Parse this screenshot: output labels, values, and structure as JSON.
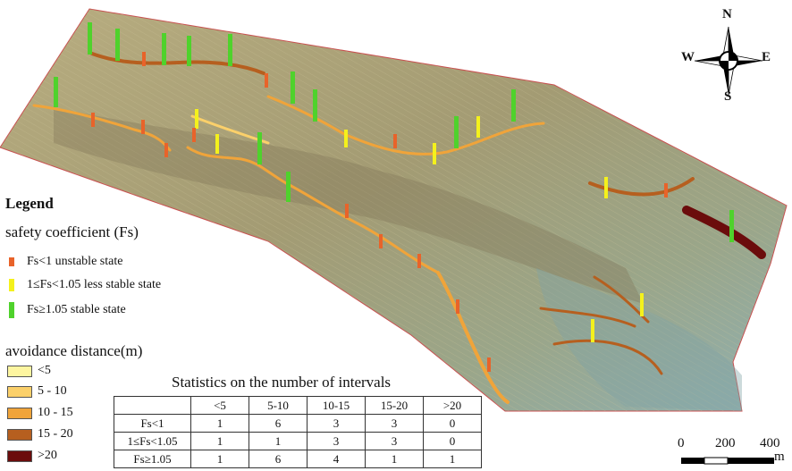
{
  "legend": {
    "title": "Legend",
    "fs_title": "safety coefficient (Fs)",
    "fs_items": [
      {
        "label": "Fs<1 unstable state",
        "color": "#e8632a"
      },
      {
        "label": "1≤Fs<1.05 less stable state",
        "color": "#f4f11c"
      },
      {
        "label": "Fs≥1.05 stable state",
        "color": "#4fd22c"
      }
    ],
    "avoid_title": "avoidance distance(m)",
    "avoid_items": [
      {
        "label": "<5",
        "color": "#fdf5a0"
      },
      {
        "label": "5 - 10",
        "color": "#fbd06a"
      },
      {
        "label": "10 - 15",
        "color": "#f0a43a"
      },
      {
        "label": "15 - 20",
        "color": "#b65f1f"
      },
      {
        "label": ">20",
        "color": "#6b0c0c"
      }
    ]
  },
  "stats": {
    "title": "Statistics on the number of intervals",
    "columns": [
      "<5",
      "5-10",
      "10-15",
      "15-20",
      ">20"
    ],
    "rows": [
      {
        "label": "Fs<1",
        "values": [
          "1",
          "6",
          "3",
          "3",
          "0"
        ]
      },
      {
        "label": "1≤Fs<1.05",
        "values": [
          "1",
          "1",
          "3",
          "3",
          "0"
        ]
      },
      {
        "label": "Fs≥1.05",
        "values": [
          "1",
          "6",
          "4",
          "1",
          "1"
        ]
      }
    ]
  },
  "compass": {
    "n": "N",
    "s": "S",
    "e": "E",
    "w": "W"
  },
  "scale": {
    "ticks": [
      "0",
      "200",
      "400"
    ],
    "unit": "m"
  }
}
